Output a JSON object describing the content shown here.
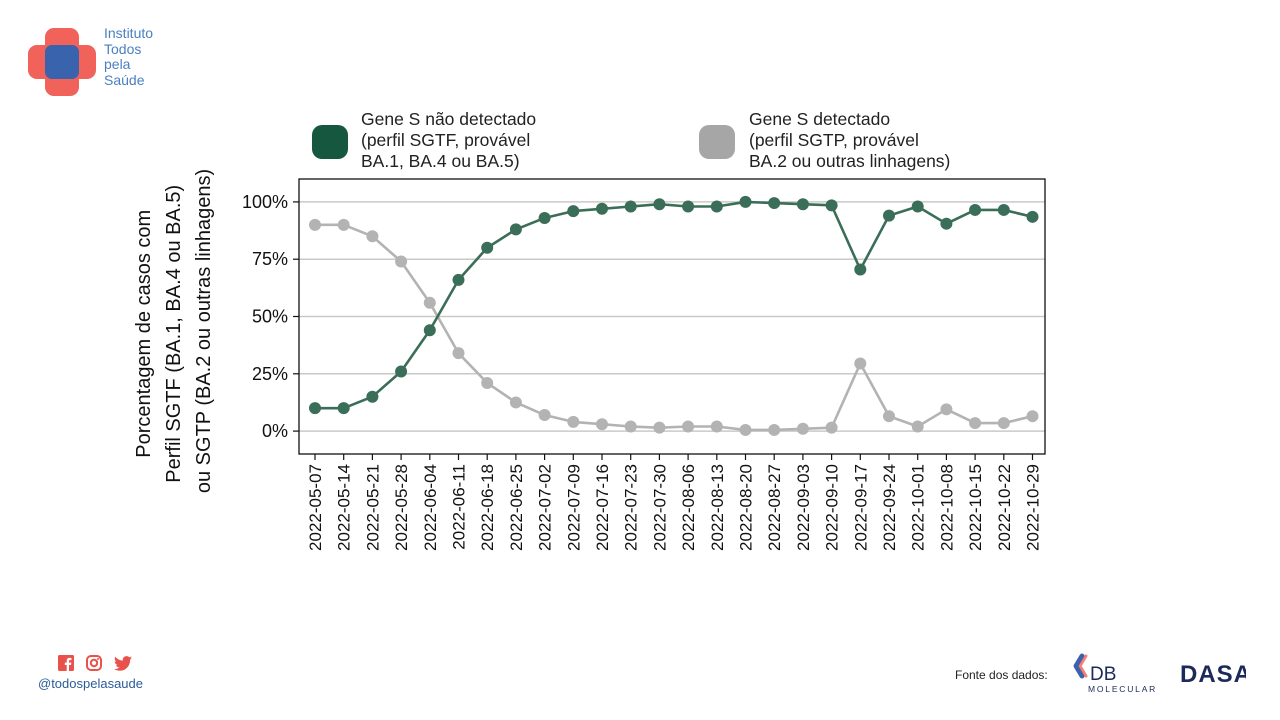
{
  "branding": {
    "org_name_lines": [
      "Instituto",
      "Todos",
      "pela",
      "Saúde"
    ],
    "handle": "@todospelasaude",
    "social_icons": [
      "facebook-icon",
      "instagram-icon",
      "twitter-icon"
    ],
    "source_label": "Fonte dos dados:",
    "source_logos": [
      "DB MOLECULAR",
      "DASA"
    ],
    "db_logo_top": "DB",
    "db_logo_bottom": "MOLECULAR",
    "dasa_logo_text": "DASA"
  },
  "colors": {
    "sgtf": "#3b6e58",
    "sgtp": "#b3b3b3",
    "legend_sgtf": "#15573f",
    "legend_sgtp": "#a6a6a6",
    "grid": "#c9c9c9",
    "logo_red": "#f0625a",
    "logo_blue": "#3a63ad",
    "handle_blue": "#2b5b9a"
  },
  "chart_data": {
    "type": "line",
    "ylabel_lines": [
      "Porcentagem de casos com",
      "Perfil SGTF (BA.1, BA.4 ou BA.5)",
      "ou SGTP (BA.2 ou outras linhagens)"
    ],
    "ylim": [
      -10,
      110
    ],
    "yticks": [
      0,
      25,
      50,
      75,
      100
    ],
    "ytick_labels": [
      "0%",
      "25%",
      "50%",
      "75%",
      "100%"
    ],
    "grid": "horizontal",
    "legend_position": "top",
    "x": [
      "2022-05-07",
      "2022-05-14",
      "2022-05-21",
      "2022-05-28",
      "2022-06-04",
      "2022-06-11",
      "2022-06-18",
      "2022-06-25",
      "2022-07-02",
      "2022-07-09",
      "2022-07-16",
      "2022-07-23",
      "2022-07-30",
      "2022-08-06",
      "2022-08-13",
      "2022-08-20",
      "2022-08-27",
      "2022-09-03",
      "2022-09-10",
      "2022-09-17",
      "2022-09-24",
      "2022-10-01",
      "2022-10-08",
      "2022-10-15",
      "2022-10-22",
      "2022-10-29"
    ],
    "series": [
      {
        "name": "Gene S não detectado",
        "legend_lines": [
          "Gene S não detectado",
          "(perfil SGTF, provável",
          "BA.1, BA.4 ou BA.5)"
        ],
        "values": [
          10,
          10,
          15,
          26,
          44,
          66,
          80,
          88,
          93,
          96,
          97,
          98,
          99,
          98,
          98,
          100,
          99.5,
          99,
          98.5,
          70.5,
          94,
          98,
          90.5,
          96.5,
          96.5,
          93.5
        ]
      },
      {
        "name": "Gene S detectado",
        "legend_lines": [
          "Gene S detectado",
          "(perfil SGTP, provável",
          "BA.2 ou outras linhagens)"
        ],
        "values": [
          90,
          90,
          85,
          74,
          56,
          34,
          21,
          12.5,
          7,
          4,
          3,
          2,
          1.5,
          2,
          2,
          0.5,
          0.5,
          1,
          1.5,
          29.5,
          6.5,
          2,
          9.5,
          3.5,
          3.5,
          6.5
        ]
      }
    ]
  }
}
